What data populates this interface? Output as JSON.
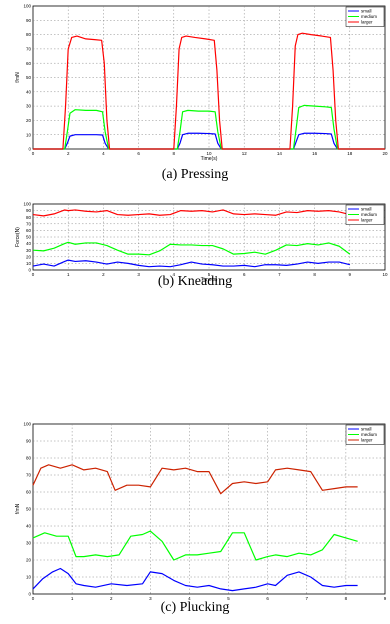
{
  "chart_data": [
    {
      "type": "line",
      "caption": "(a)  Pressing",
      "xlabel": "Time(s)",
      "ylabel": "f/mN",
      "xlim": [
        0,
        20
      ],
      "ylim": [
        0,
        100
      ],
      "xticks": [
        0,
        2,
        4,
        6,
        8,
        10,
        12,
        14,
        16,
        18,
        20
      ],
      "yticks": [
        0,
        10,
        20,
        30,
        40,
        50,
        60,
        70,
        80,
        90,
        100
      ],
      "grid": true,
      "legend": "top-right",
      "series": [
        {
          "name": "small",
          "color": "#0000ff",
          "x": [
            0,
            1.8,
            1.95,
            2.1,
            2.4,
            3.0,
            3.6,
            3.95,
            4.1,
            4.3,
            8.0,
            8.2,
            8.35,
            8.5,
            8.8,
            9.4,
            10.0,
            10.35,
            10.5,
            10.7,
            14.6,
            14.8,
            14.95,
            15.1,
            15.4,
            16.0,
            16.6,
            16.95,
            17.1,
            17.3,
            20
          ],
          "y": [
            0,
            0,
            4,
            9,
            10,
            10,
            10,
            9.8,
            4,
            0,
            0,
            0,
            4,
            10,
            11,
            11,
            10.8,
            10.5,
            4,
            0,
            0,
            0,
            5,
            10,
            11,
            11,
            10.8,
            10.5,
            4,
            0,
            0
          ]
        },
        {
          "name": "medium",
          "color": "#00ff00",
          "x": [
            0,
            1.8,
            1.95,
            2.1,
            2.4,
            3.0,
            3.6,
            3.95,
            4.1,
            4.3,
            8.0,
            8.2,
            8.35,
            8.5,
            8.8,
            9.4,
            10.0,
            10.35,
            10.5,
            10.7,
            14.6,
            14.8,
            14.95,
            15.1,
            15.4,
            16.0,
            16.6,
            16.95,
            17.1,
            17.3,
            20
          ],
          "y": [
            0,
            0,
            12,
            25,
            27.5,
            27,
            27,
            26,
            12,
            0,
            0,
            0,
            12,
            26,
            27,
            26.5,
            26.5,
            26,
            12,
            0,
            0,
            0,
            14,
            29,
            30.5,
            30,
            29.5,
            29,
            14,
            0,
            0
          ]
        },
        {
          "name": "larger",
          "color": "#ff0000",
          "x": [
            0,
            1.7,
            1.85,
            2.0,
            2.2,
            2.5,
            3.0,
            3.5,
            3.9,
            4.05,
            4.2,
            4.35,
            8.0,
            8.15,
            8.3,
            8.45,
            8.7,
            9.2,
            9.8,
            10.3,
            10.45,
            10.6,
            10.75,
            14.6,
            14.75,
            14.9,
            15.05,
            15.3,
            15.8,
            16.4,
            16.9,
            17.05,
            17.2,
            17.35,
            20
          ],
          "y": [
            0,
            0,
            30,
            70,
            78,
            79,
            77,
            76.5,
            76,
            60,
            20,
            0,
            0,
            30,
            70,
            78,
            79,
            78,
            77,
            76,
            55,
            20,
            0,
            0,
            30,
            72,
            80,
            81,
            80,
            79,
            78,
            55,
            20,
            0,
            0
          ]
        }
      ]
    },
    {
      "type": "line",
      "caption": "(b)  Kneading",
      "xlabel": "Time(s)",
      "ylabel": "Force(N)",
      "xlim": [
        0,
        10
      ],
      "ylim": [
        0,
        100
      ],
      "xticks": [
        0,
        1,
        2,
        3,
        4,
        5,
        6,
        7,
        8,
        9,
        10
      ],
      "yticks": [
        0,
        10,
        20,
        30,
        40,
        50,
        60,
        70,
        80,
        90,
        100
      ],
      "grid": true,
      "legend": "top-right",
      "series": [
        {
          "name": "small",
          "color": "#0000ff",
          "x": [
            0,
            0.3,
            0.6,
            0.9,
            1.0,
            1.2,
            1.5,
            1.8,
            2.1,
            2.4,
            2.7,
            3.0,
            3.3,
            3.6,
            3.9,
            4.2,
            4.5,
            4.8,
            5.1,
            5.4,
            5.7,
            6.0,
            6.3,
            6.6,
            6.9,
            7.2,
            7.5,
            7.8,
            8.1,
            8.4,
            8.7,
            9.0
          ],
          "y": [
            6,
            9,
            6,
            13,
            15,
            13,
            14,
            12,
            9,
            12,
            10,
            7,
            5,
            6,
            5,
            8,
            12,
            9,
            8,
            6,
            6,
            7,
            5,
            8,
            8,
            7,
            9,
            12,
            10,
            12,
            12,
            8
          ]
        },
        {
          "name": "medium",
          "color": "#00ff00",
          "x": [
            0,
            0.3,
            0.6,
            0.9,
            1.0,
            1.2,
            1.5,
            1.8,
            2.1,
            2.4,
            2.7,
            3.0,
            3.3,
            3.6,
            3.9,
            4.2,
            4.5,
            4.8,
            5.1,
            5.4,
            5.7,
            6.0,
            6.3,
            6.6,
            6.9,
            7.2,
            7.5,
            7.8,
            8.1,
            8.4,
            8.7,
            9.0
          ],
          "y": [
            30,
            29,
            33,
            40,
            42,
            39,
            41,
            41,
            37,
            30,
            24,
            24,
            23,
            29,
            39,
            38,
            38,
            37,
            37,
            32,
            24,
            25,
            27,
            24,
            30,
            38,
            37,
            40,
            38,
            41,
            36,
            24
          ]
        },
        {
          "name": "larger",
          "color": "#ff0000",
          "x": [
            0,
            0.3,
            0.6,
            0.9,
            1.0,
            1.2,
            1.5,
            1.8,
            2.1,
            2.4,
            2.7,
            3.0,
            3.3,
            3.6,
            3.9,
            4.2,
            4.5,
            4.8,
            5.1,
            5.4,
            5.7,
            6.0,
            6.3,
            6.6,
            6.9,
            7.2,
            7.5,
            7.8,
            8.1,
            8.4,
            8.7,
            9.0
          ],
          "y": [
            84,
            82,
            85,
            91,
            90,
            91,
            89,
            88,
            90,
            84,
            83,
            84,
            85,
            83,
            84,
            90,
            89,
            90,
            88,
            91,
            85,
            84,
            85,
            84,
            83,
            88,
            87,
            90,
            89,
            90,
            88,
            84
          ]
        }
      ]
    },
    {
      "type": "line",
      "caption": "(c)  Plucking",
      "xlabel": "Time(s)",
      "ylabel": "f/mN",
      "xlim": [
        0,
        9
      ],
      "ylim": [
        0,
        100
      ],
      "xticks": [
        0,
        1,
        2,
        3,
        4,
        5,
        6,
        7,
        8,
        9
      ],
      "yticks": [
        0,
        10,
        20,
        30,
        40,
        50,
        60,
        70,
        80,
        90,
        100
      ],
      "grid": true,
      "legend": "top-right",
      "series": [
        {
          "name": "small",
          "color": "#0000ff",
          "x": [
            0,
            0.25,
            0.5,
            0.7,
            0.9,
            1.1,
            1.3,
            1.6,
            2.0,
            2.4,
            2.8,
            3.0,
            3.3,
            3.6,
            3.9,
            4.2,
            4.5,
            4.8,
            5.1,
            5.4,
            5.7,
            6.0,
            6.2,
            6.5,
            6.8,
            7.1,
            7.4,
            7.7,
            8.0,
            8.3
          ],
          "y": [
            3,
            9,
            13,
            15,
            12,
            6,
            5,
            4,
            6,
            5,
            6,
            13,
            12,
            8,
            5,
            4,
            5,
            3,
            2,
            3,
            4,
            6,
            5,
            11,
            13,
            10,
            5,
            4,
            5,
            5
          ]
        },
        {
          "name": "medium",
          "color": "#00ff00",
          "x": [
            0,
            0.3,
            0.6,
            0.9,
            1.1,
            1.3,
            1.6,
            1.9,
            2.2,
            2.5,
            2.8,
            3.0,
            3.3,
            3.6,
            3.9,
            4.2,
            4.5,
            4.8,
            5.1,
            5.4,
            5.7,
            6.0,
            6.2,
            6.5,
            6.8,
            7.1,
            7.4,
            7.7,
            8.0,
            8.3
          ],
          "y": [
            33,
            36,
            34,
            34,
            22,
            22,
            23,
            22,
            23,
            34,
            35,
            37,
            31,
            20,
            23,
            23,
            24,
            25,
            36,
            36,
            20,
            22,
            23,
            22,
            24,
            23,
            26,
            35,
            33,
            31
          ]
        },
        {
          "name": "larger",
          "color": "#cc2200",
          "x": [
            0,
            0.2,
            0.4,
            0.7,
            1.0,
            1.3,
            1.6,
            1.9,
            2.1,
            2.4,
            2.7,
            3.0,
            3.3,
            3.6,
            3.9,
            4.2,
            4.5,
            4.8,
            5.1,
            5.4,
            5.7,
            6.0,
            6.2,
            6.5,
            6.8,
            7.1,
            7.4,
            7.7,
            8.0,
            8.3
          ],
          "y": [
            64,
            74,
            76,
            74,
            76,
            73,
            74,
            72,
            61,
            64,
            64,
            63,
            74,
            73,
            74,
            72,
            72,
            59,
            65,
            66,
            65,
            66,
            73,
            74,
            73,
            72,
            61,
            62,
            63,
            63
          ]
        }
      ]
    }
  ]
}
